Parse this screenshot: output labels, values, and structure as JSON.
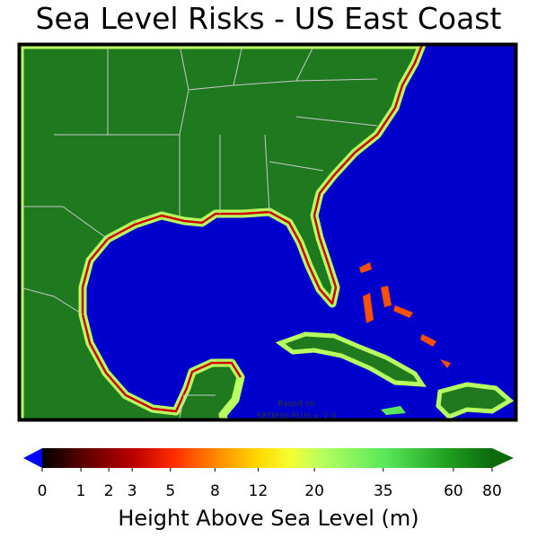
{
  "title": "Sea Level Risks - US East Coast",
  "annotation": [
    "Based on",
    "SRTM30 PLUS v. 2.0"
  ],
  "colorbar": {
    "label": "Height Above Sea Level (m)",
    "ticks": [
      0,
      1,
      2,
      3,
      5,
      8,
      12,
      20,
      35,
      60,
      80
    ]
  }
}
